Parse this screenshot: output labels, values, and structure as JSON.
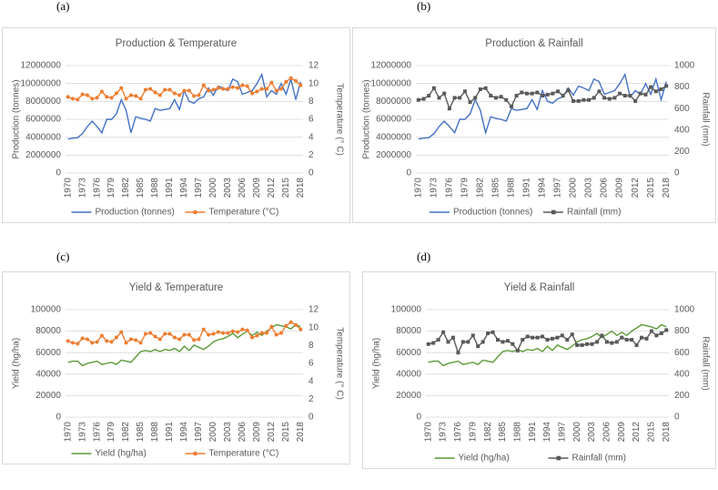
{
  "chart_data": [
    {
      "type": "line",
      "panel": "(a)",
      "title": "Production & Temperature",
      "ylabel": "Production (tonnes)",
      "y2label": "Temperature (° C)",
      "categories": [
        "1970",
        null,
        null,
        "1973",
        null,
        null,
        "1976",
        null,
        null,
        "1979",
        null,
        null,
        "1982",
        null,
        null,
        "1985",
        null,
        null,
        "1988",
        null,
        null,
        "1991",
        null,
        null,
        "1994",
        null,
        null,
        "1997",
        null,
        null,
        "2000",
        null,
        null,
        "2003",
        null,
        null,
        "2006",
        null,
        null,
        "2009",
        null,
        null,
        "2012",
        null,
        null,
        "2015",
        null,
        null,
        "2018"
      ],
      "ylim": [
        0,
        12000000
      ],
      "yticks": [
        0,
        2000000,
        4000000,
        6000000,
        8000000,
        10000000,
        12000000
      ],
      "y2lim": [
        0,
        12
      ],
      "y2ticks": [
        0,
        2,
        4,
        6,
        8,
        10,
        12
      ],
      "grid": true,
      "legend": "bottom",
      "series": [
        {
          "name": "Production (tonnes)",
          "color": "#4472c4",
          "values": [
            3800000,
            3900000,
            3950000,
            4400000,
            5200000,
            5800000,
            5200000,
            4500000,
            6000000,
            6000000,
            6600000,
            8200000,
            7000000,
            4500000,
            6300000,
            6100000,
            6000000,
            5800000,
            7200000,
            7000000,
            7100000,
            7200000,
            8200000,
            7100000,
            9200000,
            8000000,
            7800000,
            8300000,
            8500000,
            9500000,
            8700000,
            9700000,
            9500000,
            9200000,
            10500000,
            10200000,
            8800000,
            9000000,
            9200000,
            10000000,
            11000000,
            8500000,
            9200000,
            8800000,
            10000000,
            8800000,
            10500000,
            8200000,
            10200000
          ]
        },
        {
          "name": "Temperature (°C)",
          "color": "#ed7d31",
          "axis": "y2",
          "marker": "circle",
          "values": [
            8.5,
            8.3,
            8.2,
            8.8,
            8.7,
            8.3,
            8.4,
            9.1,
            8.5,
            8.4,
            8.9,
            9.5,
            8.3,
            8.7,
            8.6,
            8.3,
            9.3,
            9.4,
            9.0,
            8.7,
            9.3,
            9.3,
            8.9,
            8.7,
            9.2,
            9.2,
            8.6,
            8.7,
            9.8,
            9.2,
            9.3,
            9.5,
            9.4,
            9.4,
            9.6,
            9.5,
            9.8,
            9.7,
            8.9,
            9.1,
            9.4,
            9.4,
            10.1,
            9.2,
            9.4,
            10.2,
            10.6,
            10.3,
            9.8
          ]
        }
      ]
    },
    {
      "type": "line",
      "panel": "(b)",
      "title": "Production & Rainfall",
      "ylabel": "Production (tonnes)",
      "y2label": "Rainfall (mm)",
      "categories": [
        "1970",
        null,
        null,
        "1973",
        null,
        null,
        "1976",
        null,
        null,
        "1979",
        null,
        null,
        "1982",
        null,
        null,
        "1985",
        null,
        null,
        "1988",
        null,
        null,
        "1991",
        null,
        null,
        "1994",
        null,
        null,
        "1997",
        null,
        null,
        "2000",
        null,
        null,
        "2003",
        null,
        null,
        "2006",
        null,
        null,
        "2009",
        null,
        null,
        "2012",
        null,
        null,
        "2015",
        null,
        null,
        "2018"
      ],
      "ylim": [
        0,
        12000000
      ],
      "yticks": [
        0,
        2000000,
        4000000,
        6000000,
        8000000,
        10000000,
        12000000
      ],
      "y2lim": [
        0,
        1000
      ],
      "y2ticks": [
        0,
        200,
        400,
        600,
        800,
        1000
      ],
      "grid": true,
      "legend": "bottom",
      "series": [
        {
          "name": "Production (tonnes)",
          "color": "#4472c4",
          "values": [
            3800000,
            3900000,
            3950000,
            4400000,
            5200000,
            5800000,
            5200000,
            4500000,
            6000000,
            6000000,
            6600000,
            8200000,
            7000000,
            4500000,
            6300000,
            6100000,
            6000000,
            5800000,
            7200000,
            7000000,
            7100000,
            7200000,
            8200000,
            7100000,
            9200000,
            8000000,
            7800000,
            8300000,
            8500000,
            9500000,
            8700000,
            9700000,
            9500000,
            9200000,
            10500000,
            10200000,
            8800000,
            9000000,
            9200000,
            10000000,
            11000000,
            8500000,
            9200000,
            8800000,
            10000000,
            8800000,
            10500000,
            8200000,
            10200000
          ]
        },
        {
          "name": "Rainfall (mm)",
          "color": "#595959",
          "axis": "y2",
          "marker": "square",
          "values": [
            680,
            690,
            720,
            790,
            700,
            740,
            600,
            700,
            700,
            760,
            660,
            700,
            780,
            790,
            720,
            700,
            710,
            680,
            620,
            720,
            750,
            740,
            740,
            750,
            720,
            730,
            740,
            760,
            720,
            770,
            670,
            670,
            680,
            680,
            700,
            760,
            700,
            690,
            700,
            740,
            720,
            720,
            670,
            740,
            730,
            800,
            760,
            780,
            810
          ]
        }
      ]
    },
    {
      "type": "line",
      "panel": "(c)",
      "title": "Yield & Temperature",
      "ylabel": "Yield (hg/ha)",
      "y2label": "Temperature (° C)",
      "categories": [
        "1970",
        null,
        null,
        "1973",
        null,
        null,
        "1976",
        null,
        null,
        "1979",
        null,
        null,
        "1982",
        null,
        null,
        "1985",
        null,
        null,
        "1988",
        null,
        null,
        "1991",
        null,
        null,
        "1994",
        null,
        null,
        "1997",
        null,
        null,
        "2000",
        null,
        null,
        "2003",
        null,
        null,
        "2006",
        null,
        null,
        "2009",
        null,
        null,
        "2012",
        null,
        null,
        "2015",
        null,
        null,
        "2018"
      ],
      "ylim": [
        0,
        100000
      ],
      "yticks": [
        0,
        20000,
        40000,
        60000,
        80000,
        100000
      ],
      "y2lim": [
        0,
        12
      ],
      "y2ticks": [
        0,
        2,
        4,
        6,
        8,
        10,
        12
      ],
      "grid": true,
      "legend": "bottom",
      "series": [
        {
          "name": "Yield (hg/ha)",
          "color": "#5b9a36",
          "values": [
            51000,
            52000,
            52000,
            48000,
            50000,
            51000,
            52000,
            49000,
            50000,
            51000,
            49000,
            53000,
            52000,
            51000,
            56000,
            61000,
            62000,
            61000,
            63000,
            61000,
            63000,
            62000,
            64000,
            61000,
            66000,
            62000,
            67000,
            65000,
            63000,
            66000,
            70000,
            72000,
            73000,
            75000,
            78000,
            74000,
            77000,
            80000,
            76000,
            79000,
            76000,
            80000,
            83000,
            86000,
            85000,
            84000,
            82000,
            86000,
            84000
          ]
        },
        {
          "name": "Temperature (°C)",
          "color": "#ed7d31",
          "axis": "y2",
          "marker": "circle",
          "values": [
            8.5,
            8.3,
            8.2,
            8.8,
            8.7,
            8.3,
            8.4,
            9.1,
            8.5,
            8.4,
            8.9,
            9.5,
            8.3,
            8.7,
            8.6,
            8.3,
            9.3,
            9.4,
            9.0,
            8.7,
            9.3,
            9.3,
            8.9,
            8.7,
            9.2,
            9.2,
            8.6,
            8.7,
            9.8,
            9.2,
            9.3,
            9.5,
            9.4,
            9.4,
            9.6,
            9.5,
            9.8,
            9.7,
            8.9,
            9.1,
            9.4,
            9.4,
            10.1,
            9.2,
            9.4,
            10.2,
            10.6,
            10.3,
            9.8
          ]
        }
      ]
    },
    {
      "type": "line",
      "panel": "(d)",
      "title": "Yield & Rainfall",
      "ylabel": "Yield (hg/ha)",
      "y2label": "Rainfall (mm)",
      "categories": [
        "1970",
        null,
        null,
        "1973",
        null,
        null,
        "1976",
        null,
        null,
        "1979",
        null,
        null,
        "1982",
        null,
        null,
        "1985",
        null,
        null,
        "1988",
        null,
        null,
        "1991",
        null,
        null,
        "1994",
        null,
        null,
        "1997",
        null,
        null,
        "2000",
        null,
        null,
        "2003",
        null,
        null,
        "2006",
        null,
        null,
        "2009",
        null,
        null,
        "2012",
        null,
        null,
        "2015",
        null,
        null,
        "2018"
      ],
      "ylim": [
        0,
        100000
      ],
      "yticks": [
        0,
        20000,
        40000,
        60000,
        80000,
        100000
      ],
      "y2lim": [
        0,
        1000
      ],
      "y2ticks": [
        0,
        200,
        400,
        600,
        800,
        1000
      ],
      "grid": true,
      "legend": "bottom",
      "series": [
        {
          "name": "Yield (hg/ha)",
          "color": "#5b9a36",
          "values": [
            51000,
            52000,
            52000,
            48000,
            50000,
            51000,
            52000,
            49000,
            50000,
            51000,
            49000,
            53000,
            52000,
            51000,
            56000,
            61000,
            62000,
            61000,
            63000,
            61000,
            63000,
            62000,
            64000,
            61000,
            66000,
            62000,
            67000,
            65000,
            63000,
            66000,
            70000,
            72000,
            73000,
            75000,
            78000,
            74000,
            77000,
            80000,
            76000,
            79000,
            76000,
            80000,
            83000,
            86000,
            85000,
            84000,
            82000,
            86000,
            84000
          ]
        },
        {
          "name": "Rainfall (mm)",
          "color": "#595959",
          "axis": "y2",
          "marker": "square",
          "values": [
            680,
            690,
            720,
            790,
            700,
            740,
            600,
            700,
            700,
            760,
            660,
            700,
            780,
            790,
            720,
            700,
            710,
            680,
            620,
            720,
            750,
            740,
            740,
            750,
            720,
            730,
            740,
            760,
            720,
            770,
            670,
            670,
            680,
            680,
            700,
            760,
            700,
            690,
            700,
            740,
            720,
            720,
            670,
            740,
            730,
            800,
            760,
            780,
            810
          ]
        }
      ]
    }
  ]
}
